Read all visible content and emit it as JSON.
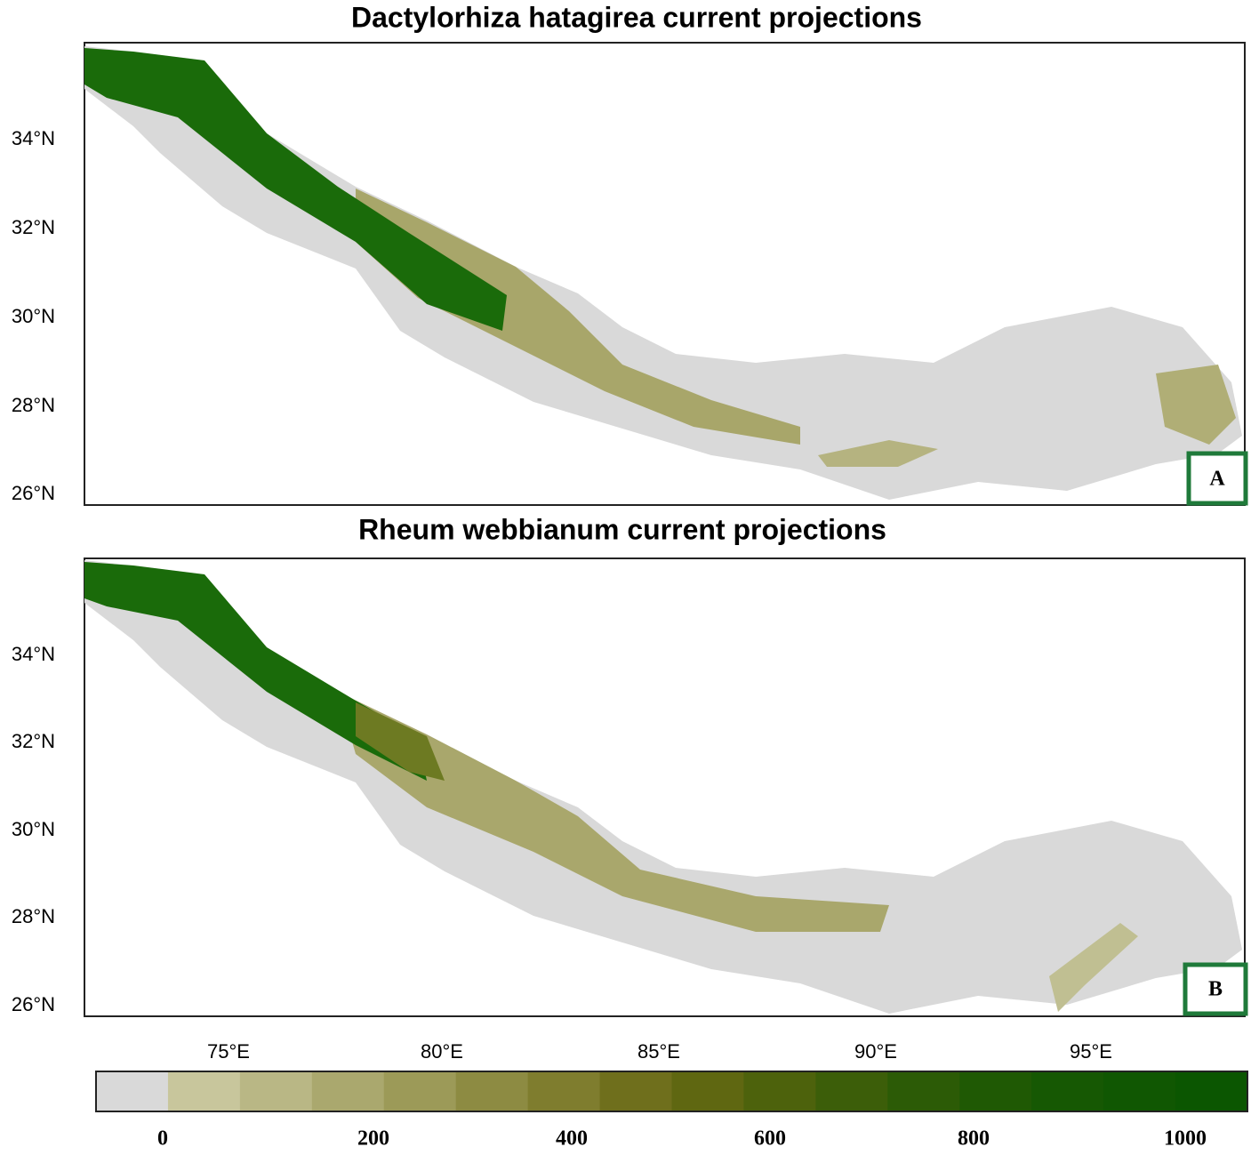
{
  "panels": [
    {
      "title": "Dactylorhiza hatagirea current projections",
      "label": "A",
      "lat_labels": [
        "34°N",
        "32°N",
        "30°N",
        "28°N",
        "26°N"
      ]
    },
    {
      "title": "Rheum webbianum current projections",
      "label": "B",
      "lat_labels": [
        "34°N",
        "32°N",
        "30°N",
        "28°N",
        "26°N"
      ]
    }
  ],
  "lon_labels": [
    "75°E",
    "80°E",
    "85°E",
    "90°E",
    "95°E"
  ],
  "colorbar": {
    "labels": [
      "0",
      "200",
      "400",
      "600",
      "800",
      "1000"
    ]
  }
}
